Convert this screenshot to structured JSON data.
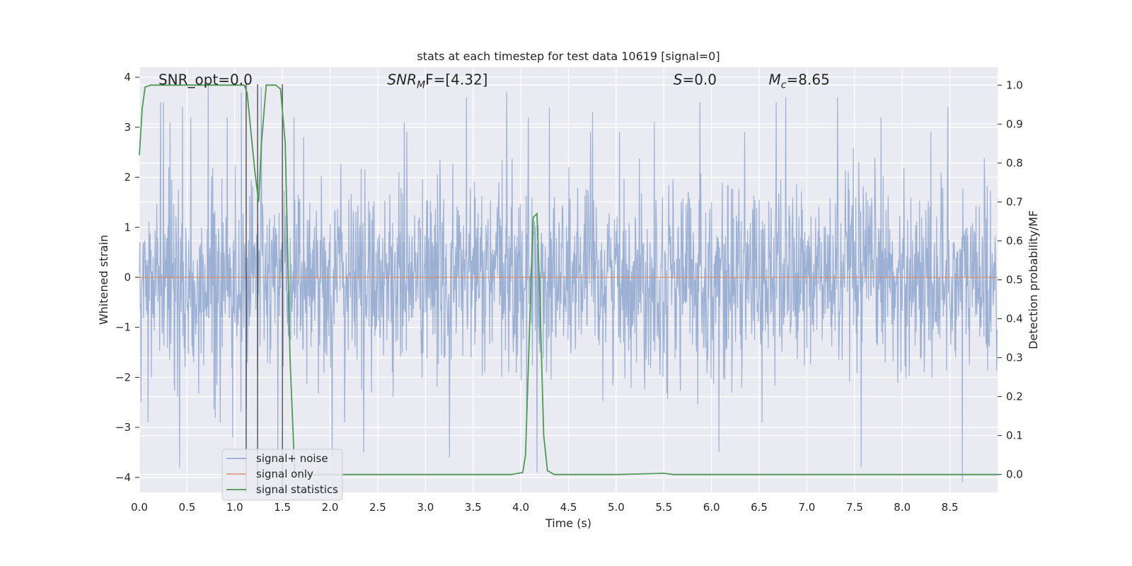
{
  "chart_data": {
    "type": "line",
    "title": "stats at each timestep for test data 10619 [signal=0]",
    "xlabel": "Time (s)",
    "ylabel": "Whitened strain",
    "y2label": "Detection probability/MF",
    "xlim": [
      0.0,
      9.0
    ],
    "ylim": [
      -4.3,
      4.2
    ],
    "y2lim": [
      -0.046,
      1.046
    ],
    "xticks": [
      "0.0",
      "0.5",
      "1.0",
      "1.5",
      "2.0",
      "2.5",
      "3.0",
      "3.5",
      "4.0",
      "4.5",
      "5.0",
      "5.5",
      "6.0",
      "6.5",
      "7.0",
      "7.5",
      "8.0",
      "8.5"
    ],
    "yticks": [
      "4",
      "3",
      "2",
      "1",
      "0",
      "−1",
      "−2",
      "−3",
      "−4"
    ],
    "y2ticks": [
      "1.0",
      "0.9",
      "0.8",
      "0.7",
      "0.6",
      "0.5",
      "0.4",
      "0.3",
      "0.2",
      "0.1",
      "0.0"
    ],
    "grid": true,
    "legend_position": "lower-left",
    "annotations": [
      {
        "text": "SNR_opt=0.0",
        "x": 0.2,
        "y": 3.95
      },
      {
        "base": "SNR",
        "sub": "M",
        "rest": "F=[4.32]",
        "x": 2.6,
        "y": 3.95
      },
      {
        "base": "S",
        "sub": "",
        "rest": "=0.0",
        "x": 5.6,
        "y": 3.95
      },
      {
        "base": "M",
        "sub": "c",
        "rest": "=8.65",
        "x": 6.6,
        "y": 3.95
      }
    ],
    "vlines": [
      1.12,
      1.24,
      1.5
    ],
    "series": [
      {
        "name": "signal+ noise",
        "color": "#7b97c7",
        "kind": "noise",
        "sample_rate": 230,
        "duration": 9.0,
        "std": 0.95,
        "peaks": [
          [
            0.09,
            -2.9
          ],
          [
            0.22,
            3.5
          ],
          [
            0.25,
            3.5
          ],
          [
            0.32,
            3.1
          ],
          [
            0.42,
            -3.8
          ],
          [
            0.45,
            3.4
          ],
          [
            0.54,
            3.2
          ],
          [
            0.72,
            3.9
          ],
          [
            0.92,
            3.2
          ],
          [
            0.98,
            -3.2
          ],
          [
            1.07,
            3.7
          ],
          [
            1.28,
            3.8
          ],
          [
            1.45,
            -3.6
          ],
          [
            1.62,
            3.2
          ],
          [
            1.72,
            2.8
          ],
          [
            2.02,
            -3.6
          ],
          [
            2.35,
            -3.5
          ],
          [
            2.78,
            3.1
          ],
          [
            3.25,
            -3.6
          ],
          [
            3.43,
            3.6
          ],
          [
            3.85,
            3.7
          ],
          [
            4.08,
            3.2
          ],
          [
            4.17,
            -3.9
          ],
          [
            4.3,
            3.4
          ],
          [
            4.75,
            3.3
          ],
          [
            5.4,
            3.1
          ],
          [
            5.88,
            3.5
          ],
          [
            6.08,
            -3.5
          ],
          [
            6.68,
            3.5
          ],
          [
            6.78,
            3.6
          ],
          [
            7.32,
            3.6
          ],
          [
            7.57,
            -3.8
          ],
          [
            7.78,
            3.2
          ],
          [
            8.48,
            3.4
          ],
          [
            8.63,
            -4.1
          ]
        ]
      },
      {
        "name": "signal only",
        "color": "#dd8452",
        "kind": "flat",
        "value": 0.0
      },
      {
        "name": "signal statistics",
        "color": "#4c9a55",
        "kind": "prob",
        "x": [
          0.0,
          0.03,
          0.06,
          0.12,
          0.2,
          0.4,
          0.7,
          1.0,
          1.1,
          1.13,
          1.17,
          1.21,
          1.25,
          1.28,
          1.33,
          1.38,
          1.43,
          1.48,
          1.53,
          1.58,
          1.63,
          1.7,
          2.0,
          3.0,
          3.9,
          4.02,
          4.05,
          4.1,
          4.13,
          4.17,
          4.2,
          4.24,
          4.28,
          4.35,
          5.0,
          5.5,
          5.6,
          9.0
        ],
        "y": [
          0.82,
          0.94,
          0.995,
          1.0,
          1.0,
          1.0,
          1.0,
          1.0,
          1.0,
          0.98,
          0.88,
          0.78,
          0.7,
          0.85,
          1.0,
          1.0,
          1.0,
          0.99,
          0.85,
          0.3,
          0.0,
          0.0,
          0.0,
          0.0,
          0.0,
          0.005,
          0.05,
          0.44,
          0.66,
          0.67,
          0.45,
          0.1,
          0.01,
          0.0,
          0.0,
          0.003,
          0.0,
          0.0
        ]
      }
    ]
  }
}
